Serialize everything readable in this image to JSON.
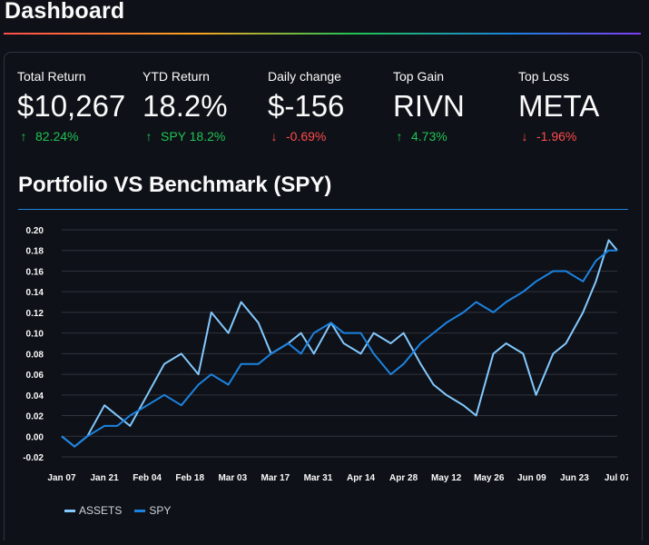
{
  "header": {
    "title": "Dashboard"
  },
  "metrics": [
    {
      "label": "Total Return",
      "value": "$10,267",
      "delta": "82.24%",
      "direction": "up"
    },
    {
      "label": "YTD Return",
      "value": "18.2%",
      "delta": "SPY 18.2%",
      "direction": "up"
    },
    {
      "label": "Daily change",
      "value": "$-156",
      "delta": "-0.69%",
      "direction": "down"
    },
    {
      "label": "Top Gain",
      "value": "RIVN",
      "delta": "4.73%",
      "direction": "up"
    },
    {
      "label": "Top Loss",
      "value": "META",
      "delta": "-1.96%",
      "direction": "down"
    }
  ],
  "colors": {
    "up": "#21c354",
    "down": "#ff4b4b",
    "assets": "#83c9ff",
    "spy": "#1c83e1",
    "grid": "#31333f"
  },
  "chart_data": {
    "type": "line",
    "title": "Portfolio VS Benchmark (SPY)",
    "xlabel": "",
    "ylabel": "",
    "ylim": [
      -0.02,
      0.2
    ],
    "yticks": [
      "0.20",
      "0.18",
      "0.16",
      "0.14",
      "0.12",
      "0.10",
      "0.08",
      "0.06",
      "0.04",
      "0.02",
      "0.00",
      "-0.02"
    ],
    "xticks": [
      "Jan 07",
      "Jan 21",
      "Feb 04",
      "Feb 18",
      "Mar 03",
      "Mar 17",
      "Mar 31",
      "Apr 14",
      "Apr 28",
      "May 12",
      "May 26",
      "Jun 09",
      "Jun 23",
      "Jul 07"
    ],
    "grid": true,
    "legend_position": "bottom-left",
    "series": [
      {
        "name": "ASSETS",
        "x": [
          0.0,
          0.3,
          0.6,
          1.0,
          1.3,
          1.6,
          2.0,
          2.4,
          2.8,
          3.2,
          3.5,
          3.9,
          4.2,
          4.6,
          4.9,
          5.3,
          5.6,
          5.9,
          6.3,
          6.6,
          7.0,
          7.3,
          7.7,
          8.0,
          8.4,
          8.7,
          9.0,
          9.4,
          9.7,
          10.1,
          10.4,
          10.8,
          11.1,
          11.5,
          11.8,
          12.2,
          12.5,
          12.8,
          13.0
        ],
        "values": [
          0.0,
          -0.01,
          0.0,
          0.03,
          0.02,
          0.01,
          0.04,
          0.07,
          0.08,
          0.06,
          0.12,
          0.1,
          0.13,
          0.11,
          0.08,
          0.09,
          0.1,
          0.08,
          0.11,
          0.09,
          0.08,
          0.1,
          0.09,
          0.1,
          0.07,
          0.05,
          0.04,
          0.03,
          0.02,
          0.08,
          0.09,
          0.08,
          0.04,
          0.08,
          0.09,
          0.12,
          0.15,
          0.19,
          0.18
        ]
      },
      {
        "name": "SPY",
        "x": [
          0.0,
          0.3,
          0.6,
          1.0,
          1.3,
          1.6,
          2.0,
          2.4,
          2.8,
          3.2,
          3.5,
          3.9,
          4.2,
          4.6,
          4.9,
          5.3,
          5.6,
          5.9,
          6.3,
          6.6,
          7.0,
          7.3,
          7.7,
          8.0,
          8.4,
          8.7,
          9.0,
          9.4,
          9.7,
          10.1,
          10.4,
          10.8,
          11.1,
          11.5,
          11.8,
          12.2,
          12.5,
          12.8,
          13.0
        ],
        "values": [
          0.0,
          -0.01,
          0.0,
          0.01,
          0.01,
          0.02,
          0.03,
          0.04,
          0.03,
          0.05,
          0.06,
          0.05,
          0.07,
          0.07,
          0.08,
          0.09,
          0.08,
          0.1,
          0.11,
          0.1,
          0.1,
          0.08,
          0.06,
          0.07,
          0.09,
          0.1,
          0.11,
          0.12,
          0.13,
          0.12,
          0.13,
          0.14,
          0.15,
          0.16,
          0.16,
          0.15,
          0.17,
          0.18,
          0.18
        ]
      }
    ]
  }
}
